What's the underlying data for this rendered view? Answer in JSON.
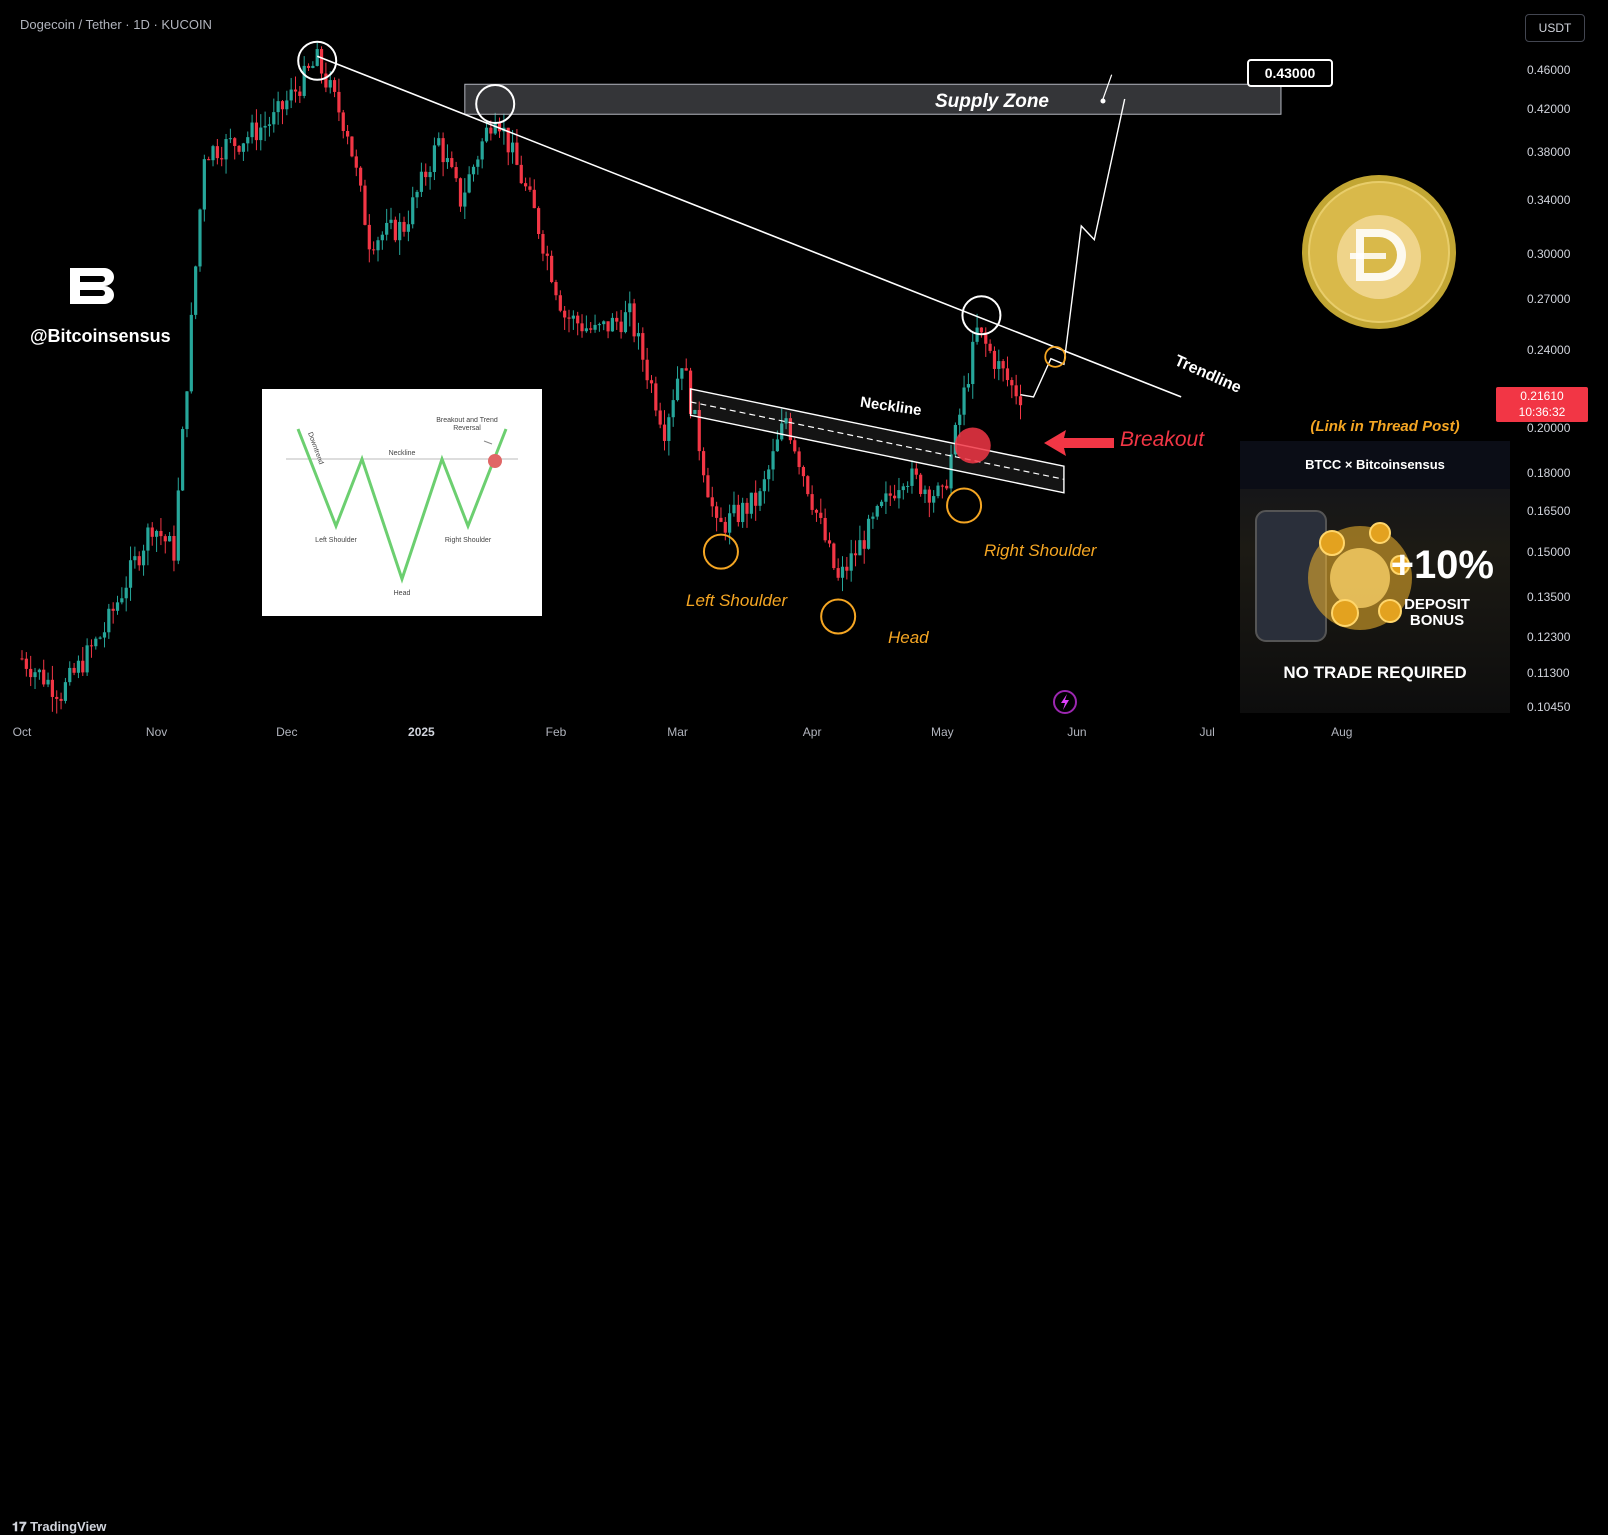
{
  "header": {
    "symbol_title": "Dogecoin / Tether · 1D · KUCOIN",
    "currency_button": "USDT"
  },
  "price_axis": [
    "0.46000",
    "0.42000",
    "0.38000",
    "0.34000",
    "0.30000",
    "0.27000",
    "0.24000",
    "0.20000",
    "0.18000",
    "0.16500",
    "0.15000",
    "0.13500",
    "0.12300",
    "0.11300",
    "0.10450"
  ],
  "time_axis": [
    {
      "label": "Oct",
      "bold": false
    },
    {
      "label": "Nov",
      "bold": false
    },
    {
      "label": "Dec",
      "bold": false
    },
    {
      "label": "2025",
      "bold": true
    },
    {
      "label": "Feb",
      "bold": false
    },
    {
      "label": "Mar",
      "bold": false
    },
    {
      "label": "Apr",
      "bold": false
    },
    {
      "label": "May",
      "bold": false
    },
    {
      "label": "Jun",
      "bold": false
    },
    {
      "label": "Jul",
      "bold": false
    },
    {
      "label": "Aug",
      "bold": false
    }
  ],
  "last_price": {
    "value": "0.21610",
    "countdown": "10:36:32",
    "color": "#f23645"
  },
  "watermark": {
    "author": "@Bitcoinsensus"
  },
  "footer": {
    "brand": "TradingView"
  },
  "annotations": {
    "supply_zone": "Supply Zone",
    "target_price": "0.43000",
    "trendline": "Trendline",
    "neckline": "Neckline",
    "breakout": "Breakout",
    "left_shoulder": "Left Shoulder",
    "head": "Head",
    "right_shoulder": "Right Shoulder"
  },
  "inset_diagram": {
    "downtrend": "Downtrend",
    "neckline": "Neckline",
    "breakout": "Breakout and Trend Reversal",
    "left_shoulder": "Left Shoulder",
    "head": "Head",
    "right_shoulder": "Right Shoulder"
  },
  "promo": {
    "link_note": "(Link in Thread Post)",
    "header": "BTCC × Bitcoinsensus",
    "bonus": "+10%",
    "bonus_sub": "DEPOSIT BONUS",
    "footer": "NO TRADE REQUIRED"
  },
  "colors": {
    "up": "#26a69a",
    "down": "#f23645",
    "orange": "#f5a623",
    "background": "#000000"
  },
  "chart_data": {
    "type": "candlestick",
    "title": "Dogecoin / Tether · 1D · KUCOIN",
    "ylim": [
      0.1,
      0.48
    ],
    "y_scale": "log",
    "grid": false,
    "price_path": [
      [
        "2024-10-01",
        0.117
      ],
      [
        "2024-10-10",
        0.108
      ],
      [
        "2024-10-20",
        0.125
      ],
      [
        "2024-10-31",
        0.16
      ],
      [
        "2024-11-05",
        0.15
      ],
      [
        "2024-11-12",
        0.38
      ],
      [
        "2024-11-20",
        0.39
      ],
      [
        "2024-11-28",
        0.41
      ],
      [
        "2024-12-08",
        0.47
      ],
      [
        "2024-12-15",
        0.4
      ],
      [
        "2024-12-20",
        0.31
      ],
      [
        "2024-12-28",
        0.32
      ],
      [
        "2025-01-05",
        0.39
      ],
      [
        "2025-01-10",
        0.34
      ],
      [
        "2025-01-18",
        0.42
      ],
      [
        "2025-01-27",
        0.33
      ],
      [
        "2025-02-03",
        0.26
      ],
      [
        "2025-02-10",
        0.25
      ],
      [
        "2025-02-18",
        0.26
      ],
      [
        "2025-02-26",
        0.2
      ],
      [
        "2025-03-02",
        0.235
      ],
      [
        "2025-03-10",
        0.158
      ],
      [
        "2025-03-20",
        0.17
      ],
      [
        "2025-03-26",
        0.205
      ],
      [
        "2025-04-07",
        0.14
      ],
      [
        "2025-04-15",
        0.16
      ],
      [
        "2025-04-22",
        0.18
      ],
      [
        "2025-05-01",
        0.17
      ],
      [
        "2025-05-09",
        0.25
      ],
      [
        "2025-05-17",
        0.22
      ],
      [
        "2025-05-19",
        0.2161
      ]
    ],
    "projection": [
      [
        "2025-05-22",
        0.215
      ],
      [
        "2025-05-26",
        0.235
      ],
      [
        "2025-05-29",
        0.232
      ],
      [
        "2025-06-02",
        0.32
      ],
      [
        "2025-06-05",
        0.31
      ],
      [
        "2025-06-12",
        0.43
      ]
    ],
    "supply_zone": [
      0.415,
      0.445
    ],
    "target": 0.43
  }
}
